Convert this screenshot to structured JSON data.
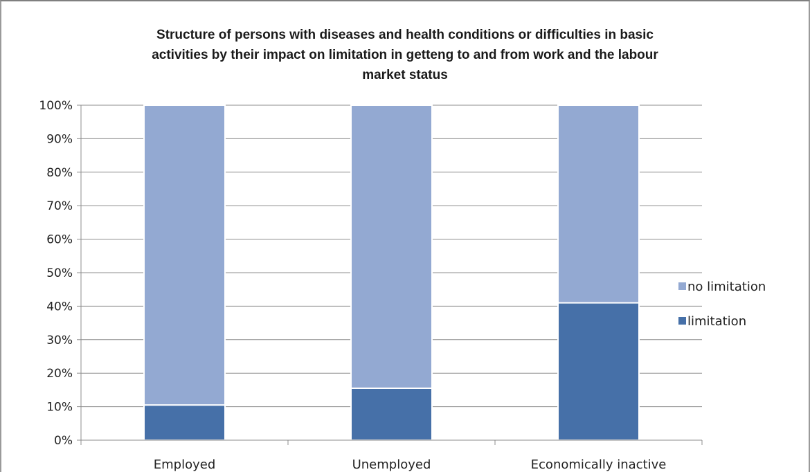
{
  "chart_data": {
    "type": "bar",
    "stacked": true,
    "percent": true,
    "title": "Structure of persons with diseases and health conditions or difficulties in basic activities by their impact on limitation in getteng to and from work and the labour market status",
    "title_lines": [
      "Structure of persons with diseases and health conditions or difficulties in basic",
      "activities by their impact on limitation in getteng to and from work and the labour",
      "market status"
    ],
    "categories": [
      "Employed",
      "Unemployed",
      "Economically inactive"
    ],
    "series": [
      {
        "name": "limitation",
        "values": [
          10.5,
          15.5,
          41
        ],
        "color": "#4670a8"
      },
      {
        "name": "no limitation",
        "values": [
          89.5,
          84.5,
          59
        ],
        "color": "#93a9d2"
      }
    ],
    "yticks": [
      "0%",
      "10%",
      "20%",
      "30%",
      "40%",
      "50%",
      "60%",
      "70%",
      "80%",
      "90%",
      "100%"
    ],
    "ylim": [
      0,
      100
    ],
    "grid": true,
    "legend_position": "right",
    "legend_order": [
      "no limitation",
      "limitation"
    ]
  }
}
